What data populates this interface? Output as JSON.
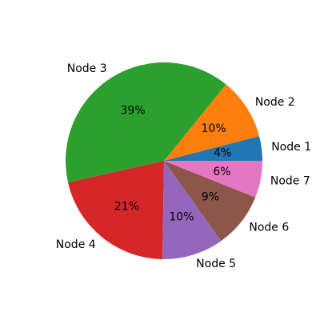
{
  "chart_data": {
    "type": "pie",
    "categories": [
      "Node 1",
      "Node 2",
      "Node 3",
      "Node 4",
      "Node 5",
      "Node 6",
      "Node 7"
    ],
    "values": [
      4,
      10,
      39,
      21,
      10,
      9,
      6
    ],
    "percent_labels": [
      "4%",
      "10%",
      "39%",
      "21%",
      "10%",
      "9%",
      "6%"
    ],
    "colors": [
      "#1f77b4",
      "#ff7f0e",
      "#2ca02c",
      "#d62728",
      "#9467bd",
      "#8c564b",
      "#e377c2"
    ],
    "start_angle_deg": 0,
    "direction": "counterclockwise",
    "title": "",
    "legend": false
  }
}
